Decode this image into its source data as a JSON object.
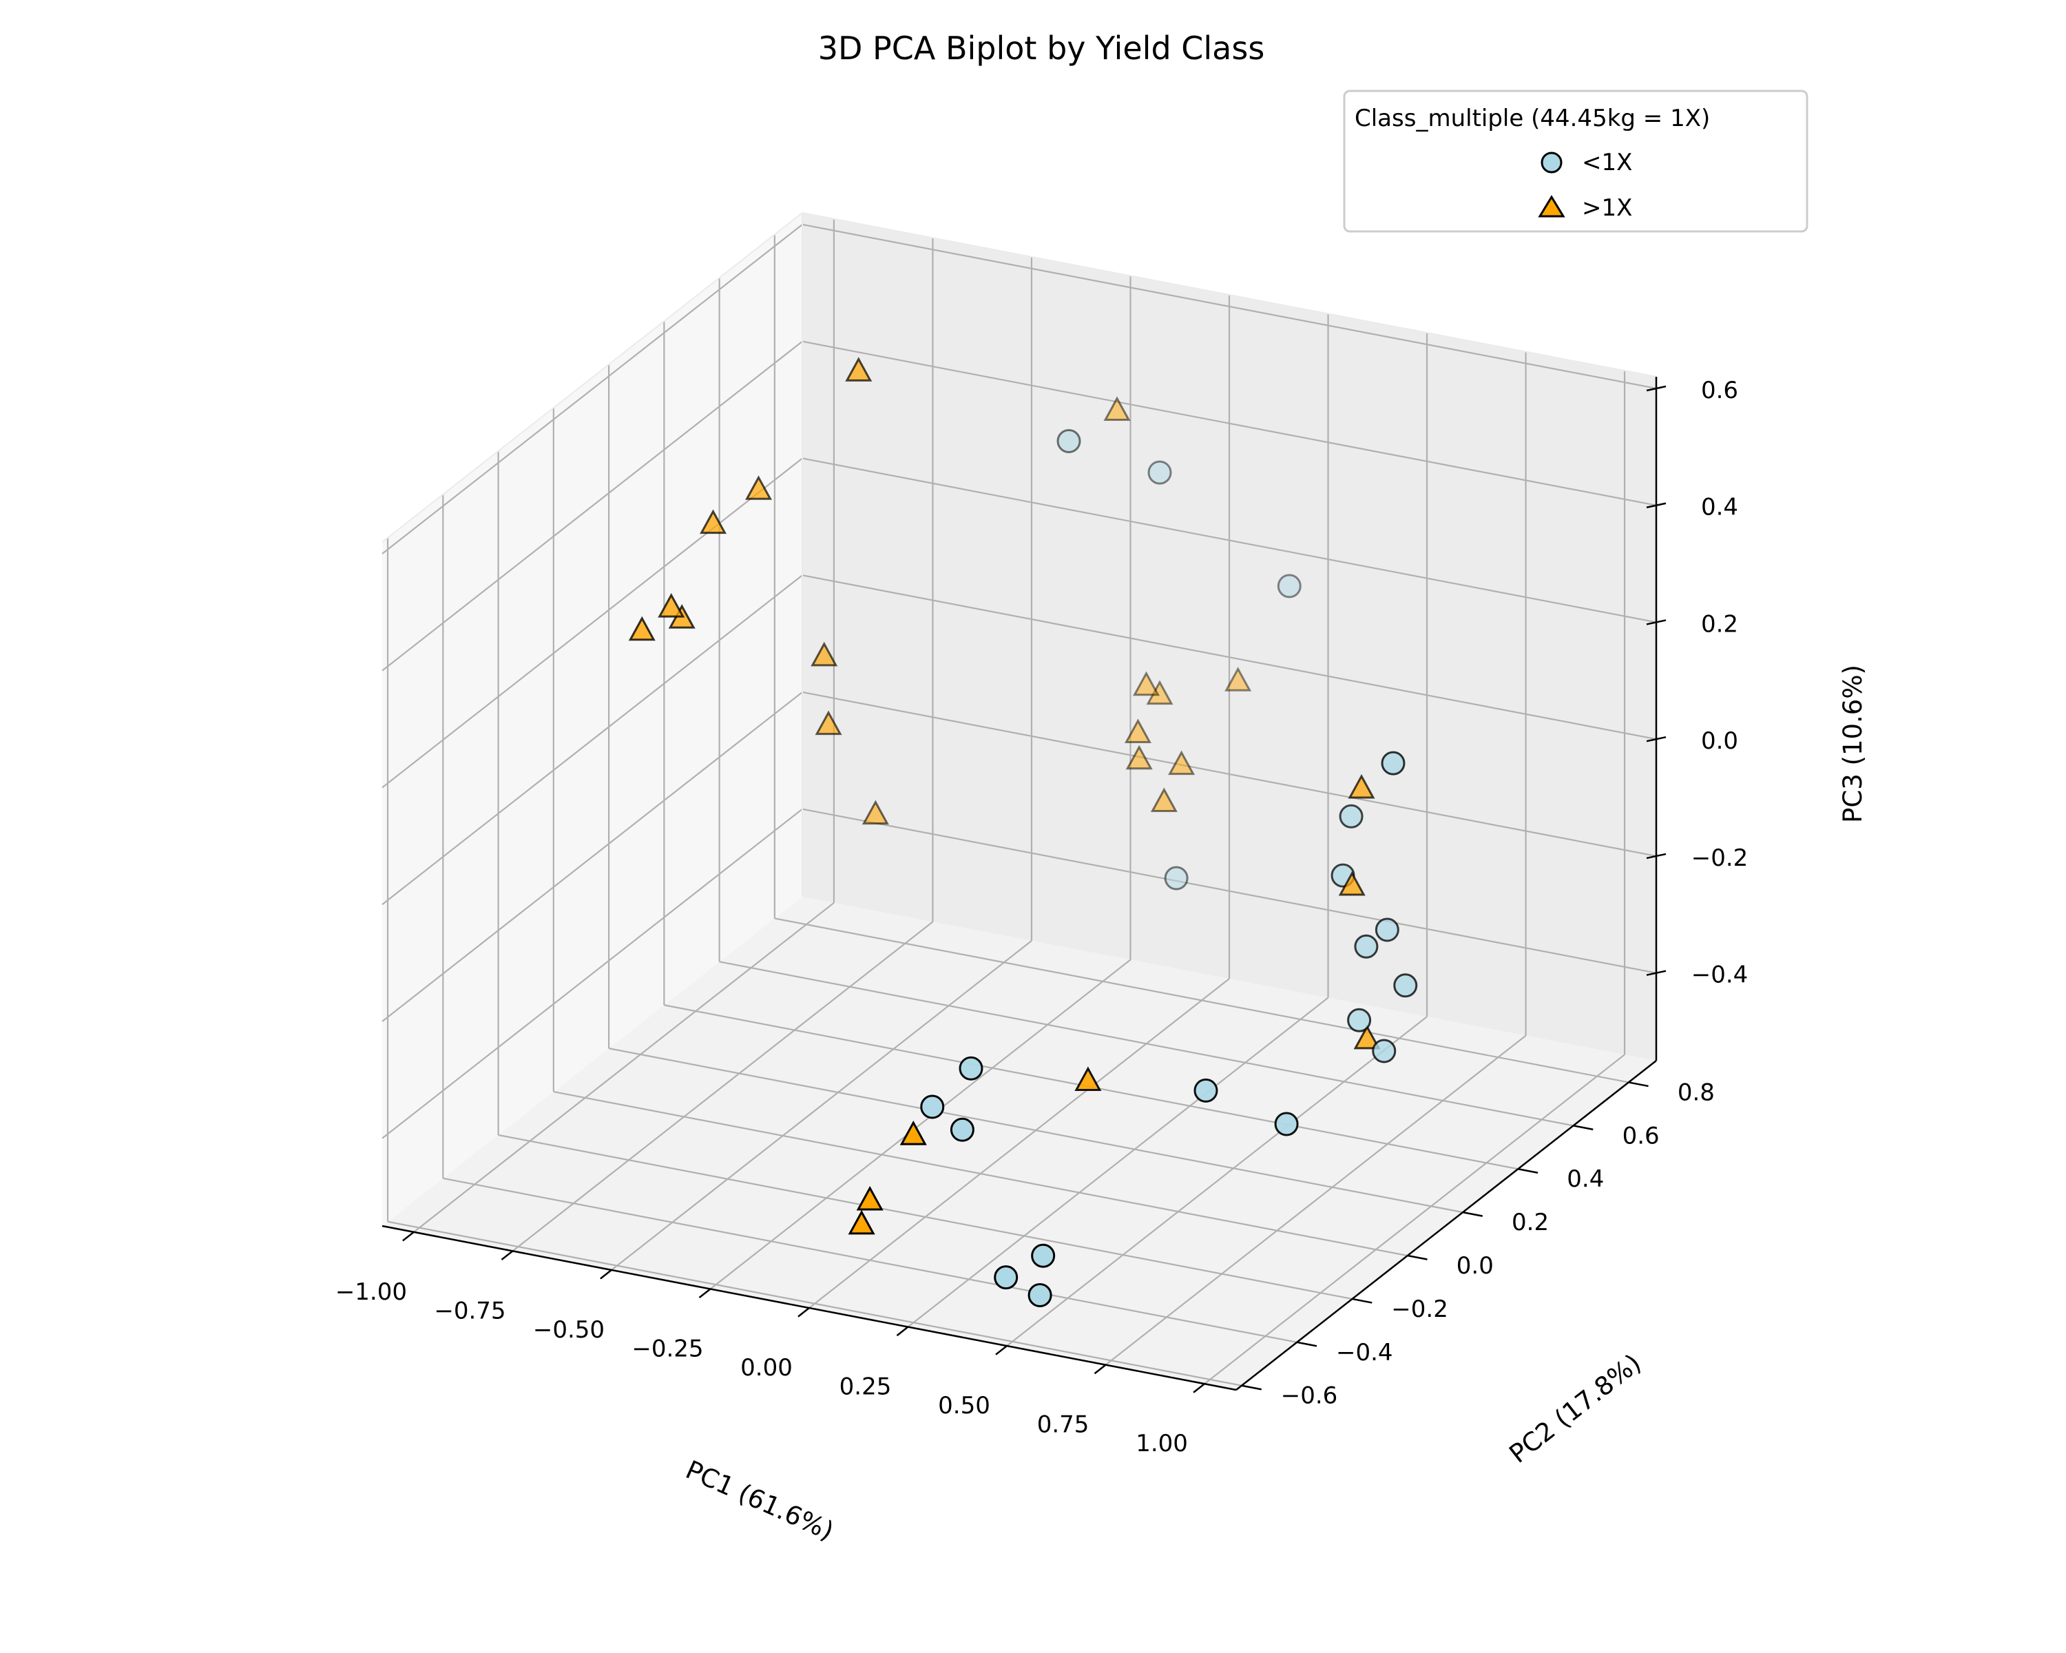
{
  "chart_data": {
    "type": "scatter",
    "title": "3D PCA Biplot by Yield Class",
    "xlabel": "PC1 (61.6%)",
    "ylabel": "PC2 (17.8%)",
    "zlabel": "PC3 (10.6%)",
    "xlim": [
      -1.08,
      1.08
    ],
    "ylim": [
      -0.62,
      0.9
    ],
    "zlim": [
      -0.55,
      0.62
    ],
    "xticks": [
      "−1.00",
      "−0.75",
      "−0.50",
      "−0.25",
      "0.00",
      "0.25",
      "0.50",
      "0.75",
      "1.00"
    ],
    "yticks": [
      "−0.6",
      "−0.4",
      "−0.2",
      "0.0",
      "0.2",
      "0.4",
      "0.6",
      "0.8"
    ],
    "zticks": [
      "−0.4",
      "−0.2",
      "0.0",
      "0.2",
      "0.4",
      "0.6"
    ],
    "legend": {
      "title": "Class_multiple (44.45kg = 1X)",
      "placement": "top-right",
      "entries": [
        "<1X",
        ">1X"
      ]
    },
    "grid": true,
    "colors": {
      "under_1x": "#add8e6",
      "over_1x": "#ffa500",
      "edge": "#000000"
    },
    "series": [
      {
        "name": "<1X",
        "marker": "circle",
        "points": [
          {
            "x": -0.28,
            "y": 0.72,
            "z": 0.4
          },
          {
            "x": -0.12,
            "y": 0.82,
            "z": 0.33
          },
          {
            "x": 0.18,
            "y": 0.86,
            "z": 0.16
          },
          {
            "x": -0.05,
            "y": 0.78,
            "z": -0.34
          },
          {
            "x": 0.82,
            "y": 0.32,
            "z": 0.14
          },
          {
            "x": 0.63,
            "y": 0.44,
            "z": -0.02
          },
          {
            "x": 0.63,
            "y": 0.41,
            "z": -0.11
          },
          {
            "x": 0.77,
            "y": 0.37,
            "z": -0.17
          },
          {
            "x": 0.71,
            "y": 0.38,
            "z": -0.21
          },
          {
            "x": 0.83,
            "y": 0.35,
            "z": -0.25
          },
          {
            "x": 0.72,
            "y": 0.34,
            "z": -0.32
          },
          {
            "x": 0.79,
            "y": 0.33,
            "z": -0.36
          },
          {
            "x": -0.08,
            "y": 0.08,
            "z": -0.41
          },
          {
            "x": -0.15,
            "y": 0.04,
            "z": -0.47
          },
          {
            "x": -0.06,
            "y": 0.02,
            "z": -0.49
          },
          {
            "x": 0.5,
            "y": 0.1,
            "z": -0.38
          },
          {
            "x": 0.69,
            "y": 0.12,
            "z": -0.42
          },
          {
            "x": 0.34,
            "y": -0.26,
            "z": -0.55
          },
          {
            "x": 0.26,
            "y": -0.28,
            "z": -0.59
          },
          {
            "x": 0.36,
            "y": -0.3,
            "z": -0.6
          }
        ]
      },
      {
        "name": ">1X",
        "marker": "triangle",
        "points": [
          {
            "x": -0.63,
            "y": 0.46,
            "z": 0.57
          },
          {
            "x": -0.2,
            "y": 0.78,
            "z": 0.44
          },
          {
            "x": -0.89,
            "y": 0.47,
            "z": 0.33
          },
          {
            "x": -0.97,
            "y": 0.42,
            "z": 0.28
          },
          {
            "x": -1.02,
            "y": 0.34,
            "z": 0.16
          },
          {
            "x": -1.0,
            "y": 0.35,
            "z": 0.14
          },
          {
            "x": -1.08,
            "y": 0.32,
            "z": 0.12
          },
          {
            "x": -0.78,
            "y": 0.55,
            "z": 0.03
          },
          {
            "x": -0.79,
            "y": 0.58,
            "z": -0.1
          },
          {
            "x": -0.72,
            "y": 0.65,
            "z": -0.27
          },
          {
            "x": -0.14,
            "y": 0.8,
            "z": -0.03
          },
          {
            "x": -0.12,
            "y": 0.82,
            "z": -0.05
          },
          {
            "x": -0.14,
            "y": 0.77,
            "z": -0.1
          },
          {
            "x": -0.13,
            "y": 0.76,
            "z": -0.14
          },
          {
            "x": -0.03,
            "y": 0.77,
            "z": -0.14
          },
          {
            "x": -0.06,
            "y": 0.75,
            "z": -0.2
          },
          {
            "x": 0.05,
            "y": 0.86,
            "z": -0.02
          },
          {
            "x": 0.67,
            "y": 0.42,
            "z": 0.04
          },
          {
            "x": 0.66,
            "y": 0.4,
            "z": -0.12
          },
          {
            "x": 0.74,
            "y": 0.34,
            "z": -0.35
          },
          {
            "x": 0.16,
            "y": 0.16,
            "z": -0.43
          },
          {
            "x": -0.1,
            "y": -0.1,
            "z": -0.46
          },
          {
            "x": -0.14,
            "y": -0.2,
            "z": -0.54
          },
          {
            "x": -0.14,
            "y": -0.23,
            "z": -0.57
          }
        ]
      }
    ]
  }
}
